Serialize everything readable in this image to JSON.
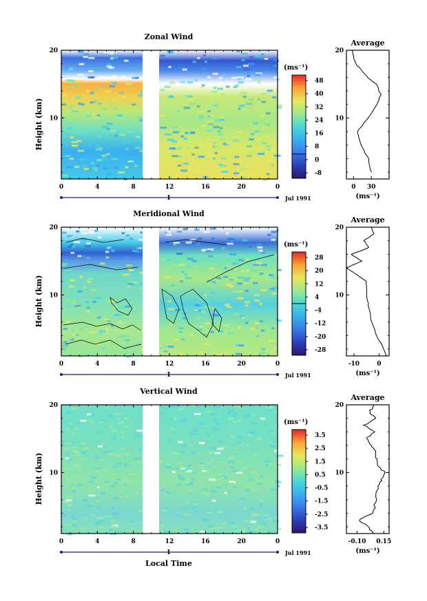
{
  "panels": [
    {
      "id": "zonal",
      "title": "Zonal Wind",
      "ylabel": "Height (km)",
      "yticks": [
        "20",
        "10"
      ],
      "xticks": [
        "0",
        "4",
        "8",
        "12",
        "16",
        "20",
        "0"
      ],
      "day_label": "1",
      "date_label": "Jul 1991",
      "unit_label": "(ms⁻¹)",
      "colorbar_ticks": [
        "48",
        "40",
        "32",
        "24",
        "16",
        "8",
        "0",
        "-8"
      ],
      "avg_title": "Average",
      "avg_yticks": [
        "20",
        "10"
      ],
      "avg_xticks": [
        "0",
        "30"
      ],
      "avg_unit": "(ms⁻¹)"
    },
    {
      "id": "meridional",
      "title": "Meridional Wind",
      "ylabel": "Height (km)",
      "yticks": [
        "20",
        "10"
      ],
      "xticks": [
        "0",
        "4",
        "8",
        "12",
        "16",
        "20",
        "0"
      ],
      "day_label": "1",
      "date_label": "Jul 1991",
      "unit_label": "(ms⁻¹)",
      "colorbar_ticks": [
        "28",
        "20",
        "12",
        "4",
        "-4",
        "-12",
        "-20",
        "-28"
      ],
      "avg_title": "Average",
      "avg_yticks": [
        "20",
        "10"
      ],
      "avg_xticks": [
        "-10",
        "0"
      ],
      "avg_unit": "(ms⁻¹)"
    },
    {
      "id": "vertical",
      "title": "Vertical Wind",
      "ylabel": "Height (km)",
      "yticks": [
        "20",
        "10"
      ],
      "xticks": [
        "0",
        "4",
        "8",
        "12",
        "16",
        "20",
        "0"
      ],
      "day_label": "1",
      "date_label": "Jul 1991",
      "unit_label": "(ms⁻¹)",
      "colorbar_ticks": [
        "3.5",
        "2.5",
        "1.5",
        "0.5",
        "-0.5",
        "-1.5",
        "-2.5",
        "-3.5"
      ],
      "avg_title": "Average",
      "avg_yticks": [
        "20",
        "10"
      ],
      "avg_xticks": [
        "-0.10",
        "0.15"
      ],
      "avg_unit": "(ms⁻¹)"
    }
  ],
  "xlabel": "Local Time",
  "colormap": [
    "#2b1a6e",
    "#2f3fb8",
    "#2f6fe0",
    "#3aa0f0",
    "#45cce8",
    "#6fe0c0",
    "#a8e888",
    "#e8e860",
    "#f8c840",
    "#f89838",
    "#f05a30",
    "#e02828"
  ],
  "chart_data": [
    {
      "type": "heatmap",
      "title": "Zonal Wind",
      "ylabel": "Height (km)",
      "xlim": [
        0,
        24
      ],
      "ylim": [
        1,
        20
      ],
      "data_gap_hours": [
        9.5,
        11
      ],
      "colorbar_range": [
        -8,
        52
      ],
      "profile": {
        "title": "Average",
        "height_km": [
          2,
          4,
          6,
          8,
          10,
          12,
          13.5,
          15,
          16,
          17,
          18,
          19,
          20
        ],
        "value": [
          30,
          25,
          12,
          6,
          25,
          40,
          46,
          38,
          24,
          14,
          4,
          0,
          -2
        ]
      }
    },
    {
      "type": "heatmap",
      "title": "Meridional Wind",
      "ylabel": "Height (km)",
      "xlim": [
        0,
        24
      ],
      "ylim": [
        1,
        20
      ],
      "data_gap_hours": [
        9.5,
        11
      ],
      "colorbar_range": [
        -32,
        32
      ],
      "contour_level": 0,
      "profile": {
        "title": "Average",
        "height_km": [
          1,
          2,
          4,
          6,
          8,
          10,
          12,
          13,
          14,
          15,
          16,
          17,
          18,
          19,
          20
        ],
        "value": [
          3,
          2,
          -1,
          -3,
          -4,
          -5,
          -5,
          -9,
          -13,
          -7,
          -11,
          -4,
          -6,
          -2,
          -3
        ]
      }
    },
    {
      "type": "heatmap",
      "title": "Vertical Wind",
      "ylabel": "Height (km)",
      "xlim": [
        0,
        24
      ],
      "ylim": [
        1,
        20
      ],
      "data_gap_hours": [
        9.5,
        11
      ],
      "colorbar_range": [
        -4,
        4
      ],
      "profile": {
        "title": "Average",
        "height_km": [
          1,
          2,
          3,
          4,
          6,
          8,
          9,
          10,
          11,
          12,
          13,
          14,
          15,
          16,
          17,
          18,
          19,
          20
        ],
        "value": [
          0.06,
          0.0,
          -0.09,
          0.05,
          0.08,
          0.1,
          0.13,
          0.16,
          0.1,
          0.08,
          0.07,
          0.04,
          -0.02,
          0.06,
          -0.03,
          0.07,
          0.02,
          0.05
        ]
      }
    }
  ]
}
